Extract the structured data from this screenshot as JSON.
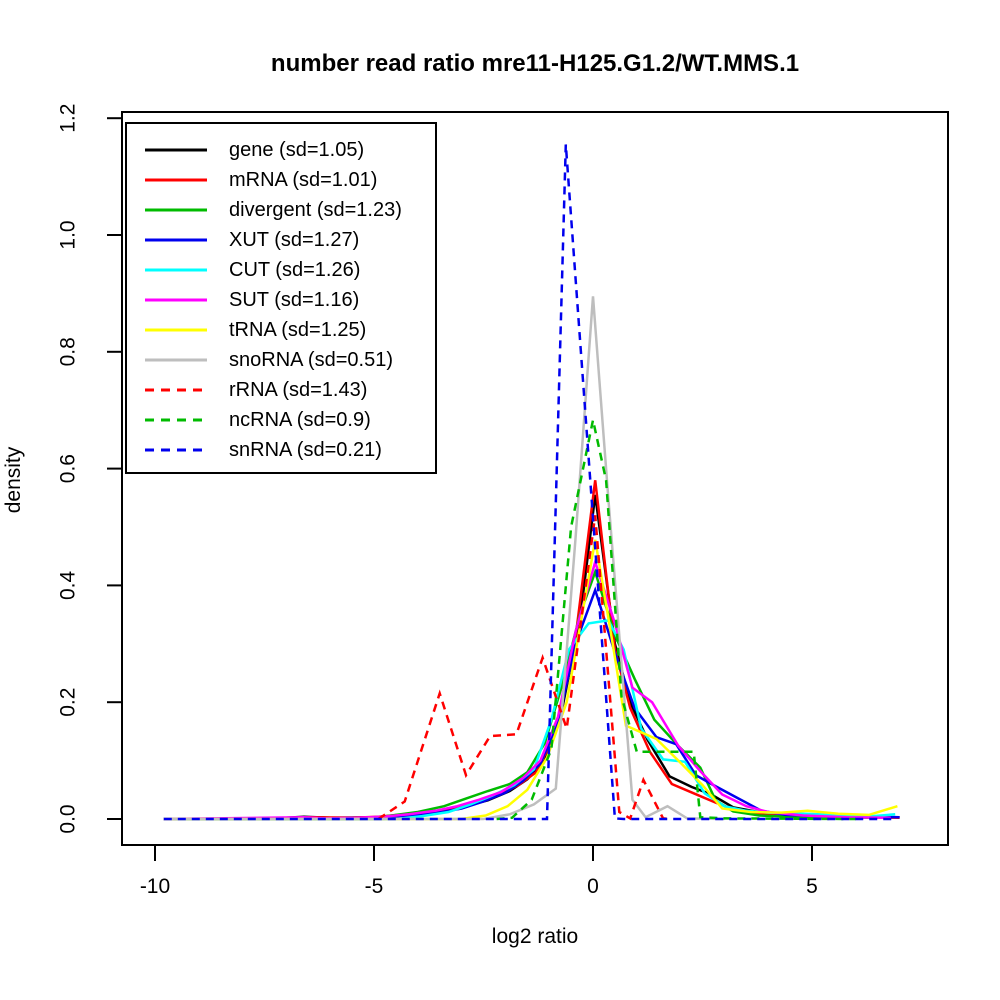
{
  "title": "number read ratio mre11-H125.G1.2/WT.MMS.1",
  "axes": {
    "x": {
      "label": "log2 ratio",
      "ticks": [
        {
          "value": -10,
          "label": "-10"
        },
        {
          "value": -5,
          "label": "-5"
        },
        {
          "value": 0,
          "label": "0"
        },
        {
          "value": 5,
          "label": "5"
        }
      ]
    },
    "y": {
      "label": "density",
      "ticks": [
        {
          "value": 0.0,
          "label": "0.0"
        },
        {
          "value": 0.2,
          "label": "0.2"
        },
        {
          "value": 0.4,
          "label": "0.4"
        },
        {
          "value": 0.6,
          "label": "0.6"
        },
        {
          "value": 0.8,
          "label": "0.8"
        },
        {
          "value": 1.0,
          "label": "1.0"
        },
        {
          "value": 1.2,
          "label": "1.2"
        }
      ]
    }
  },
  "chart_data": {
    "type": "line",
    "title": "number read ratio mre11-H125.G1.2/WT.MMS.1",
    "xlabel": "log2 ratio",
    "ylabel": "density",
    "xlim": [
      -10.8,
      8.1
    ],
    "ylim": [
      -0.045,
      1.21
    ],
    "grid": false,
    "legend_position": "top-left",
    "line_width": 2.5,
    "series": [
      {
        "name": "gene",
        "label": "gene (sd=1.05)",
        "sd": 1.05,
        "color": "#000000",
        "linetype": "solid",
        "points": [
          [
            -9.8,
            0
          ],
          [
            -7.5,
            0
          ],
          [
            -6.6,
            0.004
          ],
          [
            -6,
            0.002
          ],
          [
            -5,
            0.003
          ],
          [
            -4.4,
            0.006
          ],
          [
            -3.9,
            0.01
          ],
          [
            -3.4,
            0.014
          ],
          [
            -2.9,
            0.022
          ],
          [
            -2.4,
            0.032
          ],
          [
            -1.9,
            0.048
          ],
          [
            -1.5,
            0.068
          ],
          [
            -1.1,
            0.1
          ],
          [
            -0.7,
            0.19
          ],
          [
            -0.3,
            0.34
          ],
          [
            0.05,
            0.555
          ],
          [
            0.5,
            0.3
          ],
          [
            0.85,
            0.2
          ],
          [
            1.25,
            0.135
          ],
          [
            1.75,
            0.073
          ],
          [
            2.25,
            0.055
          ],
          [
            2.7,
            0.042
          ],
          [
            3.2,
            0.02
          ],
          [
            3.7,
            0.013
          ],
          [
            4.2,
            0.009
          ],
          [
            5,
            0.006
          ],
          [
            6,
            0.004
          ],
          [
            7,
            0.003
          ]
        ]
      },
      {
        "name": "mRNA",
        "label": "mRNA (sd=1.01)",
        "sd": 1.01,
        "color": "#ff0000",
        "linetype": "solid",
        "points": [
          [
            -9.8,
            0
          ],
          [
            -7,
            0
          ],
          [
            -6.5,
            0.003
          ],
          [
            -5.5,
            0.002
          ],
          [
            -4.9,
            0.004
          ],
          [
            -4.3,
            0.008
          ],
          [
            -3.7,
            0.012
          ],
          [
            -3.2,
            0.018
          ],
          [
            -2.7,
            0.028
          ],
          [
            -2.2,
            0.04
          ],
          [
            -1.7,
            0.058
          ],
          [
            -1.3,
            0.08
          ],
          [
            -0.9,
            0.14
          ],
          [
            -0.45,
            0.28
          ],
          [
            0.05,
            0.58
          ],
          [
            0.5,
            0.29
          ],
          [
            0.85,
            0.19
          ],
          [
            1.3,
            0.115
          ],
          [
            1.8,
            0.06
          ],
          [
            2.3,
            0.044
          ],
          [
            2.8,
            0.028
          ],
          [
            3.3,
            0.014
          ],
          [
            4,
            0.008
          ],
          [
            5,
            0.005
          ],
          [
            6,
            0.003
          ],
          [
            7,
            0.002
          ]
        ]
      },
      {
        "name": "divergent",
        "label": "divergent (sd=1.23)",
        "sd": 1.23,
        "color": "#00bb00",
        "linetype": "solid",
        "points": [
          [
            -9.8,
            0
          ],
          [
            -5.2,
            0
          ],
          [
            -4.6,
            0.006
          ],
          [
            -4,
            0.012
          ],
          [
            -3.4,
            0.022
          ],
          [
            -2.9,
            0.035
          ],
          [
            -2.4,
            0.048
          ],
          [
            -1.9,
            0.06
          ],
          [
            -1.5,
            0.08
          ],
          [
            -1.1,
            0.13
          ],
          [
            -0.7,
            0.23
          ],
          [
            -0.3,
            0.35
          ],
          [
            0.05,
            0.423
          ],
          [
            0.5,
            0.315
          ],
          [
            0.95,
            0.24
          ],
          [
            1.4,
            0.17
          ],
          [
            1.95,
            0.125
          ],
          [
            2.45,
            0.088
          ],
          [
            2.8,
            0.032
          ],
          [
            3.2,
            0.013
          ],
          [
            3.8,
            0.006
          ],
          [
            4.5,
            0.004
          ],
          [
            5.5,
            0.003
          ],
          [
            6.5,
            0.002
          ]
        ]
      },
      {
        "name": "XUT",
        "label": "XUT (sd=1.27)",
        "sd": 1.27,
        "color": "#0000ee",
        "linetype": "solid",
        "points": [
          [
            -9.8,
            0
          ],
          [
            -4.8,
            0
          ],
          [
            -4.2,
            0.005
          ],
          [
            -3.6,
            0.01
          ],
          [
            -3,
            0.018
          ],
          [
            -2.5,
            0.03
          ],
          [
            -2,
            0.045
          ],
          [
            -1.6,
            0.065
          ],
          [
            -1.2,
            0.095
          ],
          [
            -0.8,
            0.165
          ],
          [
            -0.4,
            0.3
          ],
          [
            0.05,
            0.392
          ],
          [
            0.5,
            0.285
          ],
          [
            0.95,
            0.19
          ],
          [
            1.45,
            0.14
          ],
          [
            1.9,
            0.128
          ],
          [
            2.35,
            0.075
          ],
          [
            2.75,
            0.058
          ],
          [
            3.3,
            0.036
          ],
          [
            3.85,
            0.014
          ],
          [
            4.4,
            0.007
          ],
          [
            5.2,
            0.005
          ],
          [
            6.1,
            0.004
          ],
          [
            7,
            0.003
          ]
        ]
      },
      {
        "name": "CUT",
        "label": "CUT (sd=1.26)",
        "sd": 1.26,
        "color": "#00ffff",
        "linetype": "solid",
        "points": [
          [
            -9.8,
            0
          ],
          [
            -4.5,
            0
          ],
          [
            -3.9,
            0.005
          ],
          [
            -3.3,
            0.012
          ],
          [
            -2.8,
            0.025
          ],
          [
            -2.3,
            0.04
          ],
          [
            -1.8,
            0.058
          ],
          [
            -1.35,
            0.085
          ],
          [
            -0.95,
            0.17
          ],
          [
            -0.55,
            0.29
          ],
          [
            -0.1,
            0.335
          ],
          [
            0.35,
            0.34
          ],
          [
            0.7,
            0.29
          ],
          [
            1.1,
            0.155
          ],
          [
            1.6,
            0.102
          ],
          [
            2.1,
            0.098
          ],
          [
            2.55,
            0.044
          ],
          [
            3,
            0.022
          ],
          [
            3.5,
            0.014
          ],
          [
            4,
            0.011
          ],
          [
            4.8,
            0.009
          ],
          [
            5.6,
            0.007
          ],
          [
            6.4,
            0.005
          ],
          [
            6.9,
            0.008
          ]
        ]
      },
      {
        "name": "SUT",
        "label": "SUT (sd=1.16)",
        "sd": 1.16,
        "color": "#ff00ff",
        "linetype": "solid",
        "points": [
          [
            -9.8,
            0
          ],
          [
            -6.6,
            0.003
          ],
          [
            -6.1,
            0.001
          ],
          [
            -5.4,
            0.002
          ],
          [
            -4.8,
            0.004
          ],
          [
            -4.2,
            0.008
          ],
          [
            -3.6,
            0.014
          ],
          [
            -3.1,
            0.022
          ],
          [
            -2.6,
            0.033
          ],
          [
            -2.1,
            0.046
          ],
          [
            -1.6,
            0.07
          ],
          [
            -1.2,
            0.1
          ],
          [
            -0.8,
            0.175
          ],
          [
            -0.4,
            0.32
          ],
          [
            0.05,
            0.44
          ],
          [
            0.5,
            0.335
          ],
          [
            0.9,
            0.225
          ],
          [
            1.35,
            0.2
          ],
          [
            1.95,
            0.125
          ],
          [
            2.45,
            0.082
          ],
          [
            2.95,
            0.042
          ],
          [
            3.5,
            0.022
          ],
          [
            4,
            0.012
          ],
          [
            4.8,
            0.006
          ],
          [
            5.8,
            0.003
          ],
          [
            6.8,
            0.002
          ]
        ]
      },
      {
        "name": "tRNA",
        "label": "tRNA (sd=1.25)",
        "sd": 1.25,
        "color": "#ffff00",
        "linetype": "solid",
        "points": [
          [
            -9.8,
            0
          ],
          [
            -3,
            0
          ],
          [
            -2.45,
            0.006
          ],
          [
            -1.95,
            0.022
          ],
          [
            -1.5,
            0.05
          ],
          [
            -1.05,
            0.105
          ],
          [
            -0.6,
            0.2
          ],
          [
            -0.2,
            0.37
          ],
          [
            0.05,
            0.478
          ],
          [
            0.45,
            0.3
          ],
          [
            0.75,
            0.16
          ],
          [
            1.45,
            0.137
          ],
          [
            1.95,
            0.1
          ],
          [
            2.5,
            0.058
          ],
          [
            2.95,
            0.018
          ],
          [
            3.6,
            0.012
          ],
          [
            4.3,
            0.011
          ],
          [
            4.9,
            0.014
          ],
          [
            5.6,
            0.009
          ],
          [
            6.3,
            0.007
          ],
          [
            6.95,
            0.022
          ]
        ]
      },
      {
        "name": "snoRNA",
        "label": "snoRNA (sd=0.51)",
        "sd": 0.51,
        "color": "#bebebe",
        "linetype": "solid",
        "points": [
          [
            -9.8,
            0
          ],
          [
            -2.5,
            0
          ],
          [
            -1.9,
            0.008
          ],
          [
            -1.35,
            0.025
          ],
          [
            -0.85,
            0.052
          ],
          [
            -0.4,
            0.48
          ],
          [
            0,
            0.895
          ],
          [
            0.35,
            0.55
          ],
          [
            0.9,
            0.033
          ],
          [
            1.2,
            0.003
          ],
          [
            1.7,
            0.022
          ],
          [
            2.15,
            0.001
          ],
          [
            3,
            0
          ]
        ]
      },
      {
        "name": "rRNA",
        "label": "rRNA (sd=1.43)",
        "sd": 1.43,
        "color": "#ff0000",
        "linetype": "dashed",
        "points": [
          [
            -4.9,
            0
          ],
          [
            -4.3,
            0.03
          ],
          [
            -3.5,
            0.215
          ],
          [
            -2.9,
            0.075
          ],
          [
            -2.35,
            0.142
          ],
          [
            -1.75,
            0.145
          ],
          [
            -1.15,
            0.276
          ],
          [
            -0.6,
            0.155
          ],
          [
            0.05,
            0.52
          ],
          [
            0.6,
            0.012
          ],
          [
            0.85,
            0.001
          ],
          [
            1.15,
            0.067
          ],
          [
            1.6,
            0.001
          ],
          [
            1.75,
            0
          ]
        ]
      },
      {
        "name": "ncRNA",
        "label": "ncRNA (sd=0.9)",
        "sd": 0.9,
        "color": "#00bb00",
        "linetype": "dashed",
        "points": [
          [
            -2.2,
            0
          ],
          [
            -1.85,
            0.002
          ],
          [
            -1.4,
            0.033
          ],
          [
            -0.95,
            0.12
          ],
          [
            -0.5,
            0.5
          ],
          [
            0,
            0.683
          ],
          [
            0.3,
            0.58
          ],
          [
            0.65,
            0.21
          ],
          [
            1,
            0.115
          ],
          [
            2.3,
            0.115
          ],
          [
            2.45,
            0.003
          ],
          [
            3,
            0.001
          ],
          [
            6,
            0
          ]
        ]
      },
      {
        "name": "snRNA",
        "label": "snRNA (sd=0.21)",
        "sd": 0.21,
        "color": "#0000ee",
        "linetype": "dashed",
        "points": [
          [
            -9.8,
            0
          ],
          [
            -1.05,
            0
          ],
          [
            -0.62,
            1.155
          ],
          [
            0.5,
            0.001
          ],
          [
            0.7,
            0
          ],
          [
            6.9,
            0
          ]
        ]
      }
    ]
  }
}
